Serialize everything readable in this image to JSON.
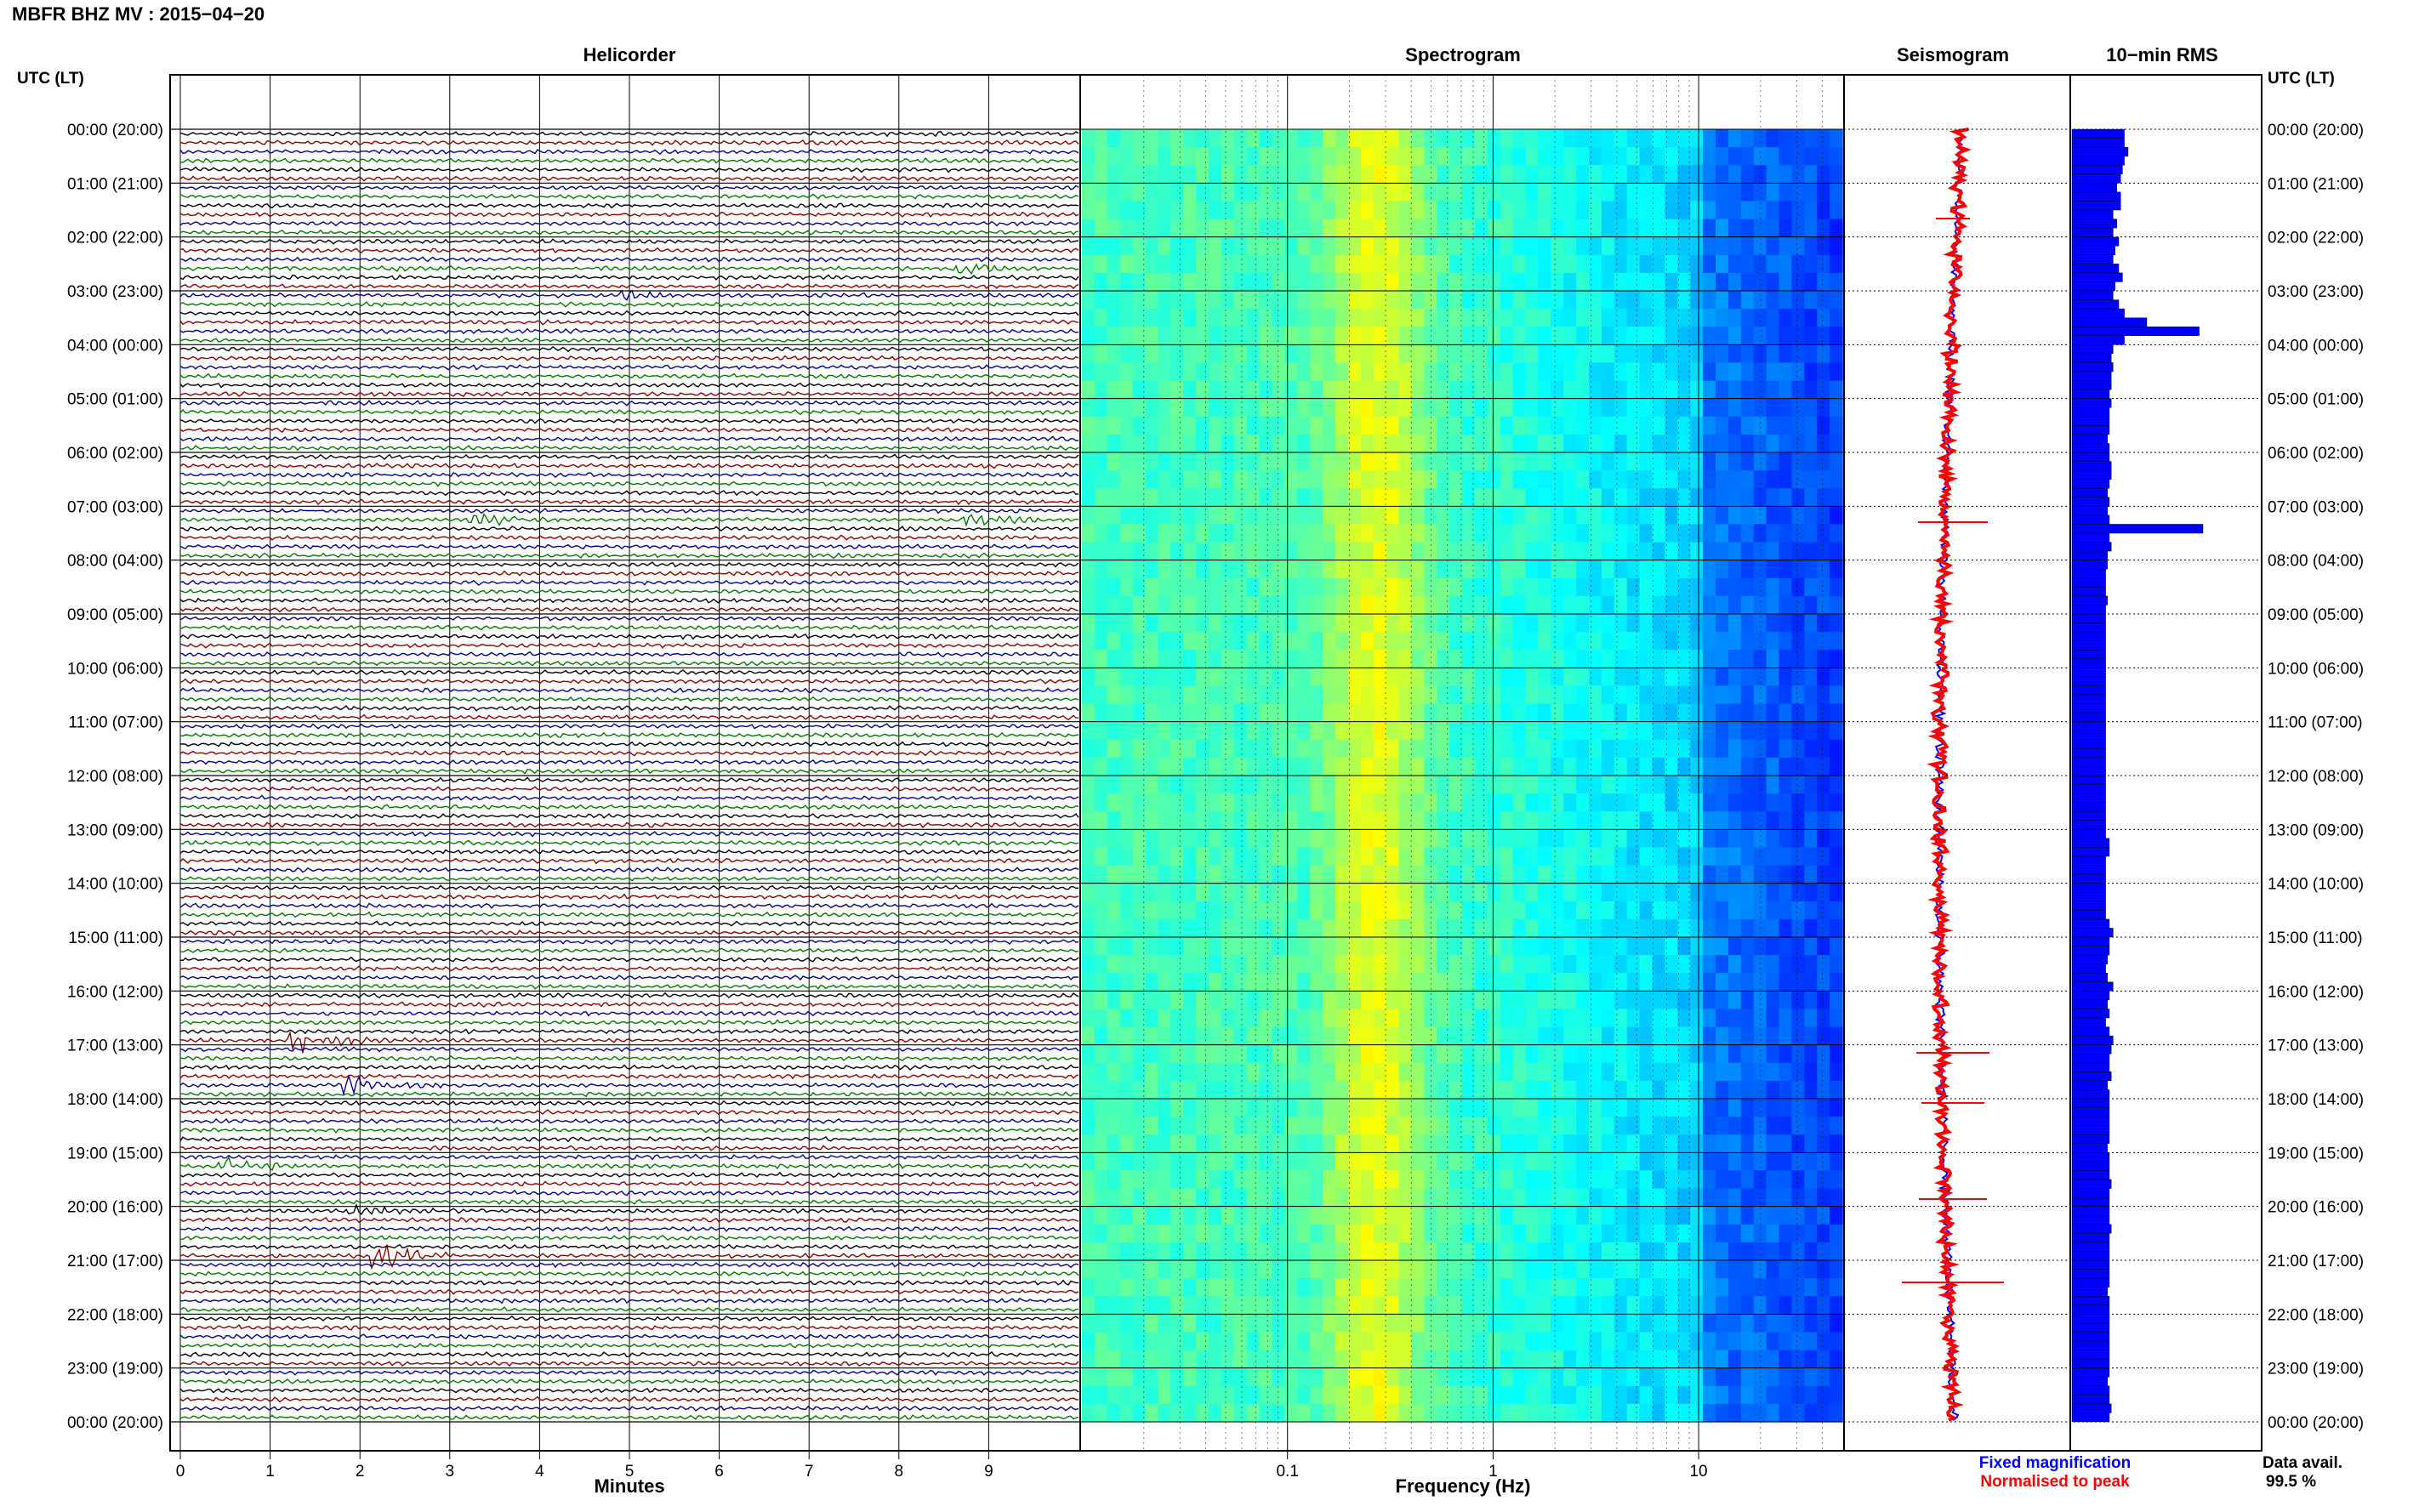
{
  "page": {
    "title": "MBFR BHZ MV : 2015−04−20",
    "utc_lt_left": "UTC (LT)",
    "utc_lt_right": "UTC (LT)",
    "data_avail_label": "Data avail.",
    "data_avail_value": "99.5 %",
    "legend_fixed": "Fixed magnification",
    "legend_norm": "Normalised to peak",
    "colors": {
      "trace_black": "#000000",
      "trace_red": "#8b0000",
      "trace_blue": "#00008b",
      "trace_green": "#007a00",
      "rms_bar": "#0000ff",
      "fixed": "#0000ff",
      "norm": "#ff0000"
    }
  },
  "chart_data": [
    {
      "type": "line",
      "title": "Helicorder",
      "xlabel": "Minutes",
      "x_ticks": [
        "0",
        "1",
        "2",
        "3",
        "4",
        "5",
        "6",
        "7",
        "8",
        "9"
      ],
      "xlim": [
        0,
        10
      ],
      "y_tick_labels": [
        "00:00 (20:00)",
        "01:00 (21:00)",
        "02:00 (22:00)",
        "03:00 (23:00)",
        "04:00 (00:00)",
        "05:00 (01:00)",
        "06:00 (02:00)",
        "07:00 (03:00)",
        "08:00 (04:00)",
        "09:00 (05:00)",
        "10:00 (06:00)",
        "11:00 (07:00)",
        "12:00 (08:00)",
        "13:00 (09:00)",
        "14:00 (10:00)",
        "15:00 (11:00)",
        "16:00 (12:00)",
        "17:00 (13:00)",
        "18:00 (14:00)",
        "19:00 (15:00)",
        "20:00 (16:00)",
        "21:00 (17:00)",
        "22:00 (18:00)",
        "23:00 (19:00)",
        "00:00 (20:00)"
      ],
      "lines": 144,
      "minutes_per_line": 10,
      "trace_colors": [
        "black",
        "red",
        "blue",
        "green"
      ],
      "events": [
        {
          "line": 15,
          "minute": 8.7,
          "amplitude": 3.0
        },
        {
          "line": 15,
          "minute": 2.3,
          "amplitude": 1.5
        },
        {
          "line": 18,
          "minute": 5.0,
          "amplitude": 1.6
        },
        {
          "line": 43,
          "minute": 3.3,
          "amplitude": 3.5
        },
        {
          "line": 43,
          "minute": 8.8,
          "amplitude": 2.5
        },
        {
          "line": 101,
          "minute": 1.3,
          "amplitude": 5.0
        },
        {
          "line": 106,
          "minute": 1.9,
          "amplitude": 4.5
        },
        {
          "line": 115,
          "minute": 0.5,
          "amplitude": 4.5
        },
        {
          "line": 120,
          "minute": 1.9,
          "amplitude": 3.0
        },
        {
          "line": 125,
          "minute": 2.2,
          "amplitude": 6.0
        }
      ]
    },
    {
      "type": "heatmap",
      "title": "Spectrogram",
      "xlabel": "Frequency (Hz)",
      "x_scale": "log",
      "x_ticks": [
        "0.1",
        "1",
        "10"
      ],
      "xlim": [
        0.01,
        50
      ]
    },
    {
      "type": "line",
      "title": "Seismogram",
      "series": [
        {
          "name": "Fixed magnification",
          "color": "#0000ff"
        },
        {
          "name": "Normalised to peak",
          "color": "#ff0000"
        }
      ]
    },
    {
      "type": "bar",
      "title": "10−min RMS",
      "orientation": "horizontal",
      "values": [
        0.28,
        0.28,
        0.3,
        0.28,
        0.27,
        0.26,
        0.24,
        0.26,
        0.26,
        0.22,
        0.24,
        0.22,
        0.25,
        0.23,
        0.22,
        0.25,
        0.27,
        0.23,
        0.22,
        0.25,
        0.28,
        0.4,
        0.68,
        0.28,
        0.22,
        0.21,
        0.22,
        0.21,
        0.21,
        0.2,
        0.21,
        0.2,
        0.2,
        0.2,
        0.19,
        0.2,
        0.2,
        0.21,
        0.21,
        0.2,
        0.19,
        0.2,
        0.19,
        0.2,
        0.7,
        0.2,
        0.21,
        0.19,
        0.19,
        0.18,
        0.18,
        0.18,
        0.19,
        0.18,
        0.18,
        0.18,
        0.18,
        0.18,
        0.18,
        0.18,
        0.18,
        0.18,
        0.18,
        0.18,
        0.18,
        0.18,
        0.18,
        0.18,
        0.18,
        0.18,
        0.18,
        0.18,
        0.18,
        0.18,
        0.18,
        0.18,
        0.18,
        0.18,
        0.18,
        0.2,
        0.2,
        0.18,
        0.18,
        0.18,
        0.18,
        0.18,
        0.18,
        0.18,
        0.2,
        0.22,
        0.2,
        0.2,
        0.19,
        0.18,
        0.19,
        0.22,
        0.2,
        0.19,
        0.2,
        0.18,
        0.2,
        0.22,
        0.21,
        0.2,
        0.2,
        0.21,
        0.19,
        0.2,
        0.2,
        0.2,
        0.2,
        0.2,
        0.2,
        0.19,
        0.2,
        0.2,
        0.2,
        0.21,
        0.2,
        0.2,
        0.2,
        0.2,
        0.21,
        0.2,
        0.2,
        0.2,
        0.2,
        0.2,
        0.2,
        0.19,
        0.2,
        0.2,
        0.2,
        0.2,
        0.2,
        0.2,
        0.2,
        0.2,
        0.2,
        0.19,
        0.2,
        0.2,
        0.21,
        0.2
      ],
      "value_note": "relative bar length 0-1"
    }
  ]
}
